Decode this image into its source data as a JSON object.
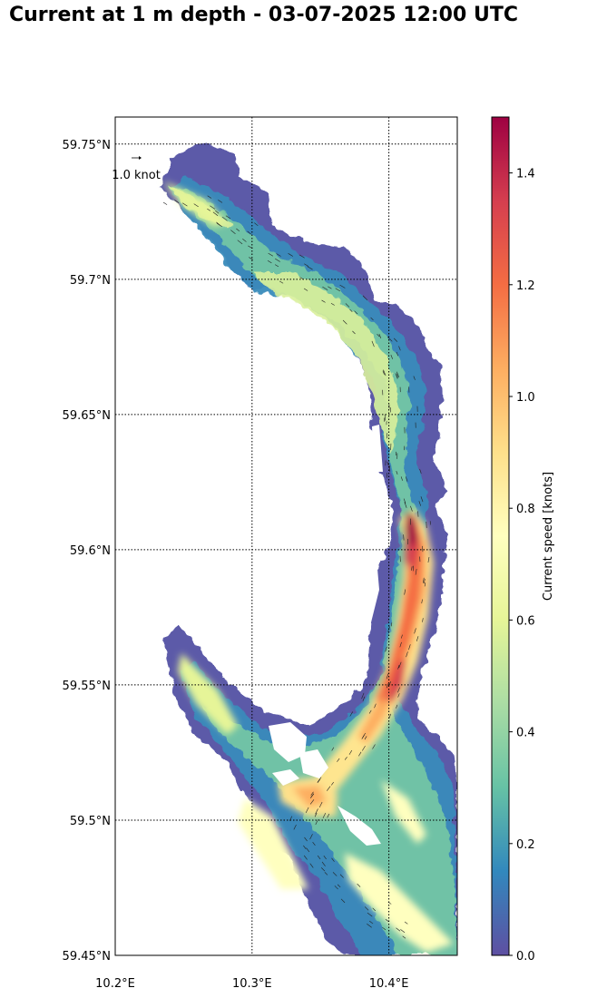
{
  "title": "Current at 1 m depth - 03-07-2025 12:00 UTC",
  "reference_arrow": {
    "label": "1.0 knot"
  },
  "map": {
    "lon_range": [
      10.2,
      10.45
    ],
    "lat_range": [
      59.45,
      59.76
    ],
    "gridlines": "dotted",
    "lon_ticks": [
      {
        "value": 10.2,
        "label": "10.2°E"
      },
      {
        "value": 10.3,
        "label": "10.3°E"
      },
      {
        "value": 10.4,
        "label": "10.4°E"
      }
    ],
    "lat_ticks": [
      {
        "value": 59.45,
        "label": "59.45°N"
      },
      {
        "value": 59.5,
        "label": "59.5°N"
      },
      {
        "value": 59.55,
        "label": "59.55°N"
      },
      {
        "value": 59.6,
        "label": "59.6°N"
      },
      {
        "value": 59.65,
        "label": "59.65°N"
      },
      {
        "value": 59.7,
        "label": "59.7°N"
      },
      {
        "value": 59.75,
        "label": "59.75°N"
      }
    ]
  },
  "colorbar": {
    "label": "Current speed [knots]",
    "colormap": "Spectral_r",
    "range": [
      0.0,
      1.5
    ],
    "ticks": [
      {
        "value": 0.0,
        "label": "0.0"
      },
      {
        "value": 0.2,
        "label": "0.2"
      },
      {
        "value": 0.4,
        "label": "0.4"
      },
      {
        "value": 0.6,
        "label": "0.6"
      },
      {
        "value": 0.8,
        "label": "0.8"
      },
      {
        "value": 1.0,
        "label": "1.0"
      },
      {
        "value": 1.2,
        "label": "1.2"
      },
      {
        "value": 1.4,
        "label": "1.4"
      }
    ]
  },
  "colors": {
    "edge_water": "#5e4fa2",
    "low": "#3288bd",
    "mid_low": "#66c2a5",
    "mid": "#abdda4",
    "mid_high": "#e6f598",
    "neutral": "#ffffbf",
    "high_low": "#fee08b",
    "high": "#fdae61",
    "very_high": "#f46d43",
    "extreme": "#d53e4f",
    "max": "#9e0142"
  }
}
